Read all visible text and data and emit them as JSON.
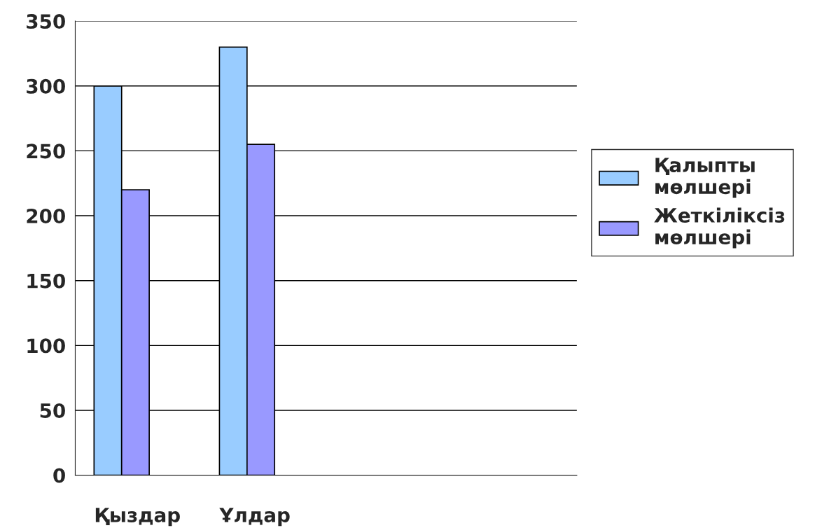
{
  "chart_data": {
    "type": "bar",
    "categories": [
      "Қыздар",
      "Ұлдар",
      null,
      null
    ],
    "series": [
      {
        "name": "Қалыпты мөлшері",
        "color": "#99ccff",
        "values": [
          300,
          330,
          null,
          null
        ]
      },
      {
        "name": "Жеткіліксіз мөлшері",
        "color": "#9999ff",
        "values": [
          220,
          255,
          null,
          null
        ]
      }
    ],
    "ylim": [
      0,
      350
    ],
    "yticks": [
      0,
      50,
      100,
      150,
      200,
      250,
      300,
      350
    ],
    "grid": "y",
    "legend": "right"
  }
}
